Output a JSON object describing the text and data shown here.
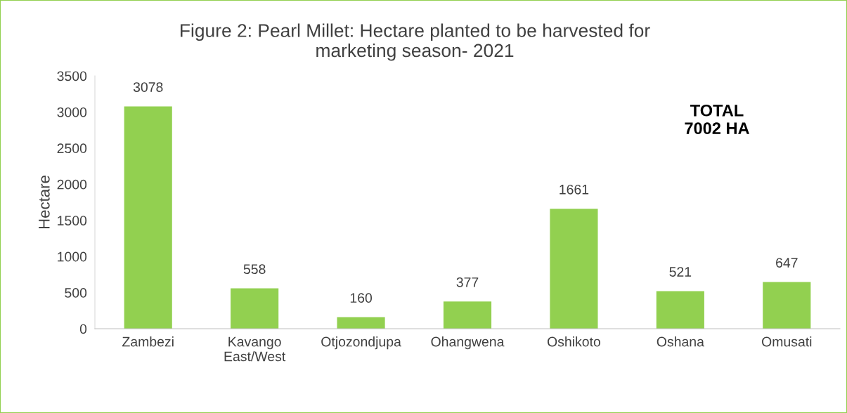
{
  "chart_data": {
    "type": "bar",
    "title": "Figure 2: Pearl Millet: Hectare planted to be harvested for\nmarketing season- 2021",
    "ylabel": "Hectare",
    "categories": [
      "Zambezi",
      "Kavango\nEast/West",
      "Otjozondjupa",
      "Ohangwena",
      "Oshikoto",
      "Oshana",
      "Omusati"
    ],
    "values": [
      3078,
      558,
      160,
      377,
      1661,
      521,
      647
    ],
    "color": "#92d050",
    "ylim": [
      0,
      3500
    ],
    "yticks": [
      0,
      500,
      1000,
      1500,
      2000,
      2500,
      3000,
      3500
    ],
    "grid": false,
    "data_labels": true,
    "annotations": [
      "TOTAL\n7002 HA"
    ]
  }
}
